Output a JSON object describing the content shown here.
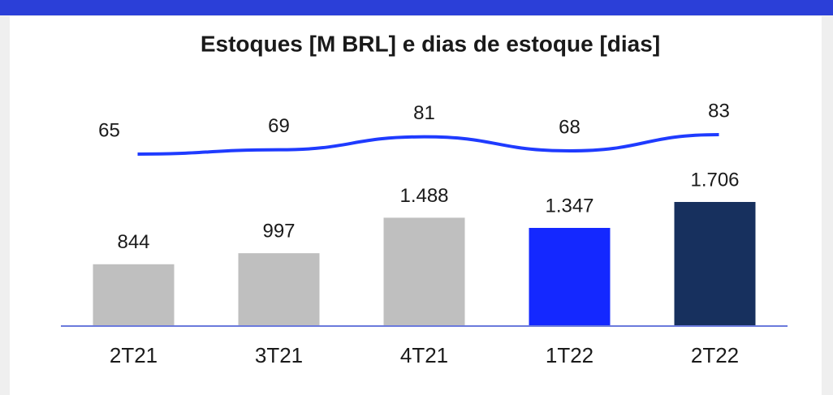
{
  "chart_data": {
    "type": "bar_line",
    "title": "Estoques [M BRL] e dias de estoque [dias]",
    "categories": [
      "2T21",
      "3T21",
      "4T21",
      "1T22",
      "2T22"
    ],
    "bars": {
      "values": [
        844,
        997,
        1488,
        1347,
        1706
      ],
      "value_labels": [
        "844",
        "997",
        "1.488",
        "1.347",
        "1.706"
      ],
      "colors": [
        "#bfbfbf",
        "#bfbfbf",
        "#bfbfbf",
        "#1428ff",
        "#17305e"
      ]
    },
    "line": {
      "values": [
        65,
        69,
        81,
        68,
        83
      ],
      "color": "#1f3bff"
    }
  }
}
